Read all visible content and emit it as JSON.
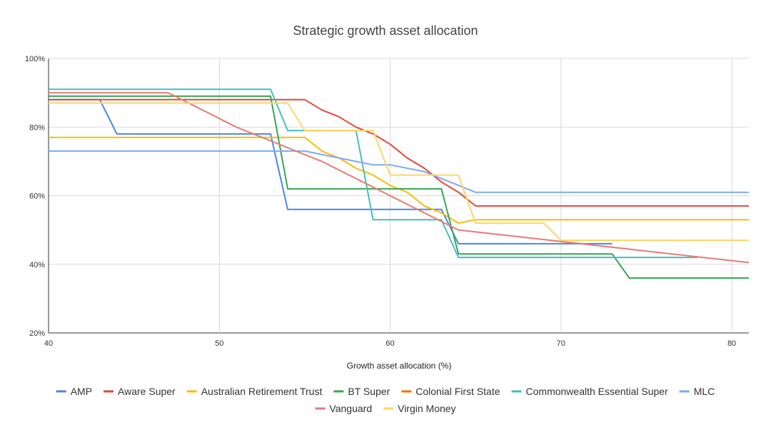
{
  "chart_data": {
    "type": "line",
    "title": "Strategic growth asset allocation",
    "xlabel": "Growth asset allocation (%)",
    "ylabel": "",
    "xlim": [
      40,
      81
    ],
    "ylim": [
      20,
      100
    ],
    "x_ticks": [
      "40",
      "50",
      "60",
      "70",
      "80"
    ],
    "y_ticks": [
      "20%",
      "40%",
      "60%",
      "80%",
      "100%"
    ],
    "grid": true,
    "legend_position": "bottom",
    "series": [
      {
        "name": "AMP",
        "color": "#4a86e8",
        "points": [
          [
            40,
            88
          ],
          [
            43,
            88
          ],
          [
            44,
            78
          ],
          [
            53,
            78
          ],
          [
            54,
            56
          ],
          [
            63,
            56
          ],
          [
            64,
            46
          ],
          [
            73,
            46
          ]
        ]
      },
      {
        "name": "Aware Super",
        "color": "#e8453c",
        "points": [
          [
            40,
            88
          ],
          [
            55,
            88
          ],
          [
            56,
            85
          ],
          [
            57,
            83
          ],
          [
            58,
            80
          ],
          [
            59,
            78
          ],
          [
            60,
            75
          ],
          [
            61,
            71
          ],
          [
            62,
            68
          ],
          [
            63,
            64
          ],
          [
            64,
            61
          ],
          [
            65,
            57
          ],
          [
            81,
            57
          ]
        ]
      },
      {
        "name": "Australian Retirement Trust",
        "color": "#fbbc04",
        "points": [
          [
            40,
            77
          ],
          [
            55,
            77
          ],
          [
            56,
            73
          ],
          [
            57,
            71
          ],
          [
            58,
            68
          ],
          [
            59,
            66
          ],
          [
            60,
            63
          ],
          [
            61,
            61
          ],
          [
            62,
            57
          ],
          [
            63,
            55
          ],
          [
            64,
            52
          ],
          [
            65,
            53
          ],
          [
            81,
            53
          ]
        ]
      },
      {
        "name": "BT Super",
        "color": "#34a853",
        "points": [
          [
            40,
            89
          ],
          [
            53,
            89
          ],
          [
            54,
            62
          ],
          [
            63,
            62
          ],
          [
            64,
            43
          ],
          [
            73,
            43
          ],
          [
            74,
            36
          ],
          [
            81,
            36
          ]
        ]
      },
      {
        "name": "Colonial First State",
        "color": "#ff6d01",
        "points": []
      },
      {
        "name": "Commonwealth Essential Super",
        "color": "#46bdc6",
        "points": [
          [
            40,
            91
          ],
          [
            53,
            91
          ],
          [
            54,
            79
          ],
          [
            58,
            79
          ],
          [
            59,
            53
          ],
          [
            63,
            53
          ],
          [
            64,
            42
          ],
          [
            78,
            42
          ]
        ]
      },
      {
        "name": "MLC",
        "color": "#7baaf7",
        "points": [
          [
            40,
            73
          ],
          [
            55,
            73
          ],
          [
            57,
            71
          ],
          [
            59,
            69
          ],
          [
            60,
            69
          ],
          [
            62,
            67
          ],
          [
            63,
            65
          ],
          [
            65,
            61
          ],
          [
            81,
            61
          ]
        ]
      },
      {
        "name": "Vanguard",
        "color": "#e67c73",
        "points": [
          [
            40,
            90
          ],
          [
            47,
            90
          ],
          [
            51,
            80
          ],
          [
            56,
            70
          ],
          [
            64,
            50
          ],
          [
            81,
            40.5
          ]
        ]
      },
      {
        "name": "Virgin Money",
        "color": "#fdd663",
        "points": [
          [
            40,
            87
          ],
          [
            54,
            87
          ],
          [
            55,
            79
          ],
          [
            59,
            79
          ],
          [
            60,
            66
          ],
          [
            64,
            66
          ],
          [
            65,
            52
          ],
          [
            69,
            52
          ],
          [
            70,
            47
          ],
          [
            81,
            47
          ]
        ]
      }
    ]
  }
}
